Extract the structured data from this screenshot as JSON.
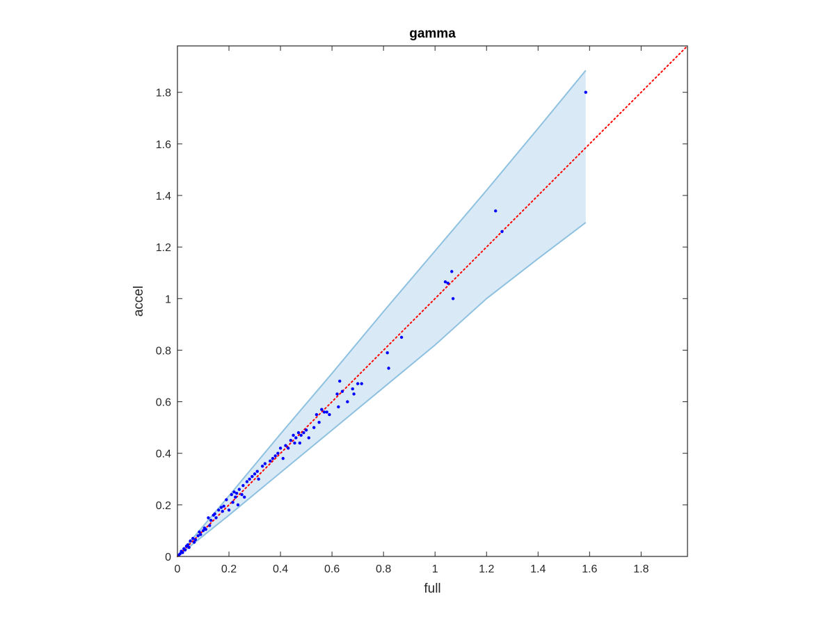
{
  "chart_data": {
    "type": "scatter",
    "title": "gamma",
    "xlabel": "full",
    "ylabel": "accel",
    "xlim": [
      0,
      1.98
    ],
    "ylim": [
      0,
      1.98
    ],
    "xticks": [
      "0",
      "0.2",
      "0.4",
      "0.6",
      "0.8",
      "1",
      "1.2",
      "1.4",
      "1.6",
      "1.8"
    ],
    "yticks": [
      "0",
      "0.2",
      "0.4",
      "0.6",
      "0.8",
      "1",
      "1.2",
      "1.4",
      "1.6",
      "1.8"
    ],
    "grid": false,
    "colors": {
      "points": "#0000ff",
      "identity_line": "#ff0000",
      "band_fill": "#d9e9f5",
      "band_edge": "#8ec1e0",
      "axes": "#262626"
    },
    "identity_line": {
      "x": [
        0,
        1.98
      ],
      "y": [
        0,
        1.98
      ],
      "style": "dotted"
    },
    "band": {
      "x": [
        0,
        0.2,
        0.4,
        0.6,
        0.8,
        1.0,
        1.2,
        1.4,
        1.585
      ],
      "upper": [
        0,
        0.235,
        0.475,
        0.71,
        0.95,
        1.185,
        1.42,
        1.66,
        1.885
      ],
      "lower": [
        0,
        0.16,
        0.325,
        0.49,
        0.655,
        0.82,
        1.0,
        1.155,
        1.295
      ]
    },
    "points": {
      "x": [
        0.005,
        0.01,
        0.015,
        0.02,
        0.025,
        0.03,
        0.035,
        0.04,
        0.045,
        0.05,
        0.06,
        0.065,
        0.07,
        0.08,
        0.085,
        0.09,
        0.1,
        0.105,
        0.11,
        0.12,
        0.125,
        0.13,
        0.14,
        0.145,
        0.15,
        0.16,
        0.17,
        0.175,
        0.18,
        0.19,
        0.2,
        0.21,
        0.215,
        0.22,
        0.225,
        0.23,
        0.235,
        0.24,
        0.25,
        0.255,
        0.26,
        0.27,
        0.28,
        0.29,
        0.3,
        0.31,
        0.315,
        0.33,
        0.34,
        0.36,
        0.37,
        0.38,
        0.39,
        0.4,
        0.41,
        0.42,
        0.43,
        0.44,
        0.45,
        0.455,
        0.46,
        0.47,
        0.475,
        0.48,
        0.49,
        0.5,
        0.51,
        0.53,
        0.54,
        0.55,
        0.56,
        0.57,
        0.58,
        0.59,
        0.62,
        0.625,
        0.63,
        0.64,
        0.66,
        0.68,
        0.685,
        0.7,
        0.715,
        0.815,
        0.82,
        0.87,
        1.04,
        1.05,
        1.065,
        1.07,
        1.235,
        1.26,
        1.585
      ],
      "y": [
        0.005,
        0.01,
        0.02,
        0.015,
        0.03,
        0.025,
        0.04,
        0.045,
        0.035,
        0.06,
        0.07,
        0.055,
        0.065,
        0.08,
        0.095,
        0.085,
        0.1,
        0.11,
        0.105,
        0.15,
        0.12,
        0.14,
        0.16,
        0.165,
        0.15,
        0.18,
        0.19,
        0.175,
        0.195,
        0.22,
        0.18,
        0.24,
        0.21,
        0.25,
        0.23,
        0.245,
        0.2,
        0.26,
        0.24,
        0.275,
        0.23,
        0.29,
        0.3,
        0.31,
        0.32,
        0.33,
        0.3,
        0.35,
        0.36,
        0.37,
        0.38,
        0.39,
        0.4,
        0.42,
        0.38,
        0.43,
        0.42,
        0.45,
        0.47,
        0.44,
        0.46,
        0.48,
        0.44,
        0.47,
        0.48,
        0.49,
        0.46,
        0.5,
        0.55,
        0.52,
        0.57,
        0.56,
        0.56,
        0.55,
        0.63,
        0.58,
        0.68,
        0.64,
        0.6,
        0.65,
        0.63,
        0.67,
        0.67,
        0.79,
        0.73,
        0.85,
        1.065,
        1.06,
        1.105,
        1.0,
        1.34,
        1.26,
        1.8
      ]
    }
  }
}
